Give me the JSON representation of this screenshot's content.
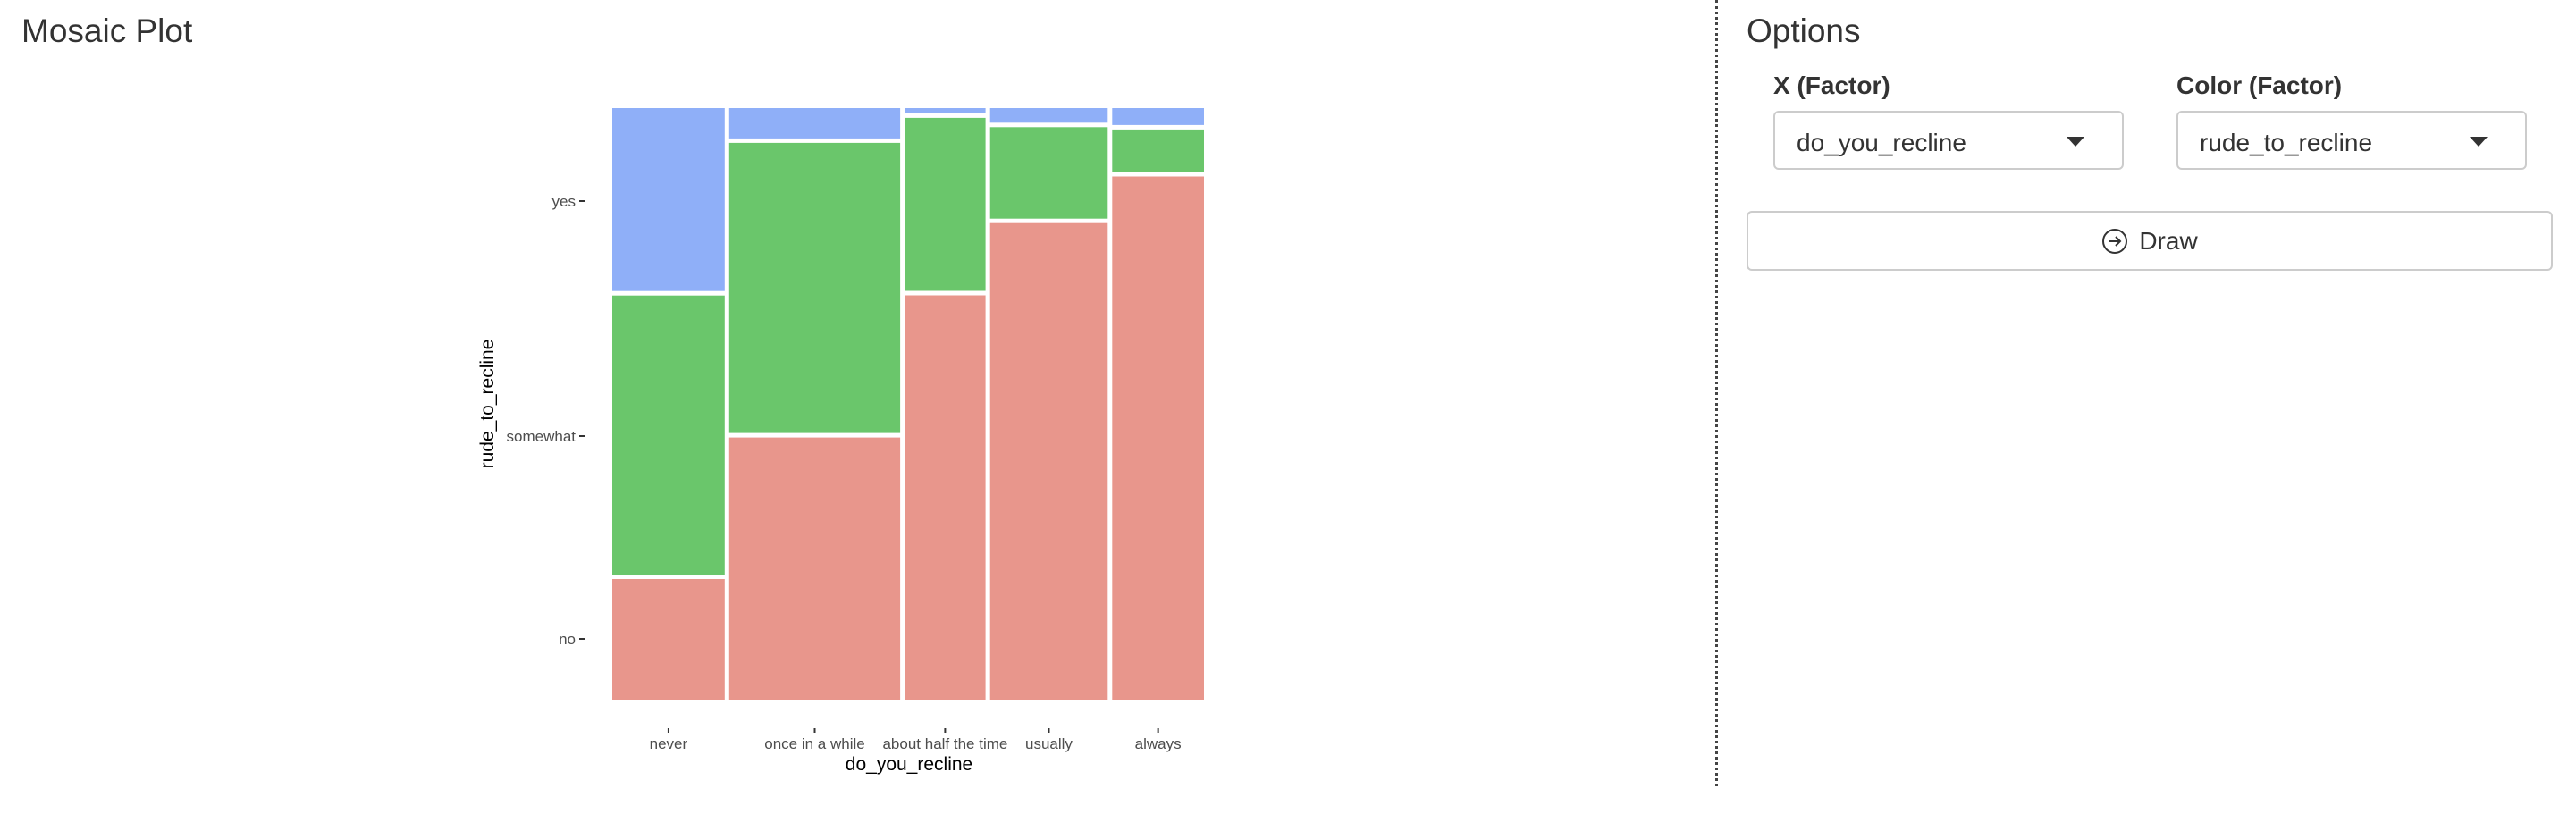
{
  "page": {
    "title": "Mosaic Plot"
  },
  "options": {
    "title": "Options",
    "x_label": "X (Factor)",
    "x_value": "do_you_recline",
    "color_label": "Color (Factor)",
    "color_value": "rude_to_recline",
    "draw_label": "Draw",
    "draw_icon": "arrow-right-circle-icon"
  },
  "chart_data": {
    "type": "mosaic",
    "xlabel": "do_you_recline",
    "ylabel": "rude_to_recline",
    "categories": [
      "never",
      "once in a while",
      "about half the time",
      "usually",
      "always"
    ],
    "column_widths": [
      0.196,
      0.298,
      0.141,
      0.205,
      0.16
    ],
    "levels": [
      "no",
      "somewhat",
      "yes"
    ],
    "series": [
      {
        "name": "no",
        "color": "#E8968C",
        "values": [
          0.207,
          0.45,
          0.694,
          0.818,
          0.898
        ]
      },
      {
        "name": "somewhat",
        "color": "#6AC66B",
        "values": [
          0.479,
          0.498,
          0.297,
          0.157,
          0.073
        ]
      },
      {
        "name": "yes",
        "color": "#8FAFF8",
        "values": [
          0.314,
          0.052,
          0.009,
          0.025,
          0.029
        ]
      }
    ],
    "y_ticks": [
      "no",
      "somewhat",
      "yes"
    ],
    "legend": "none",
    "grid": false
  }
}
